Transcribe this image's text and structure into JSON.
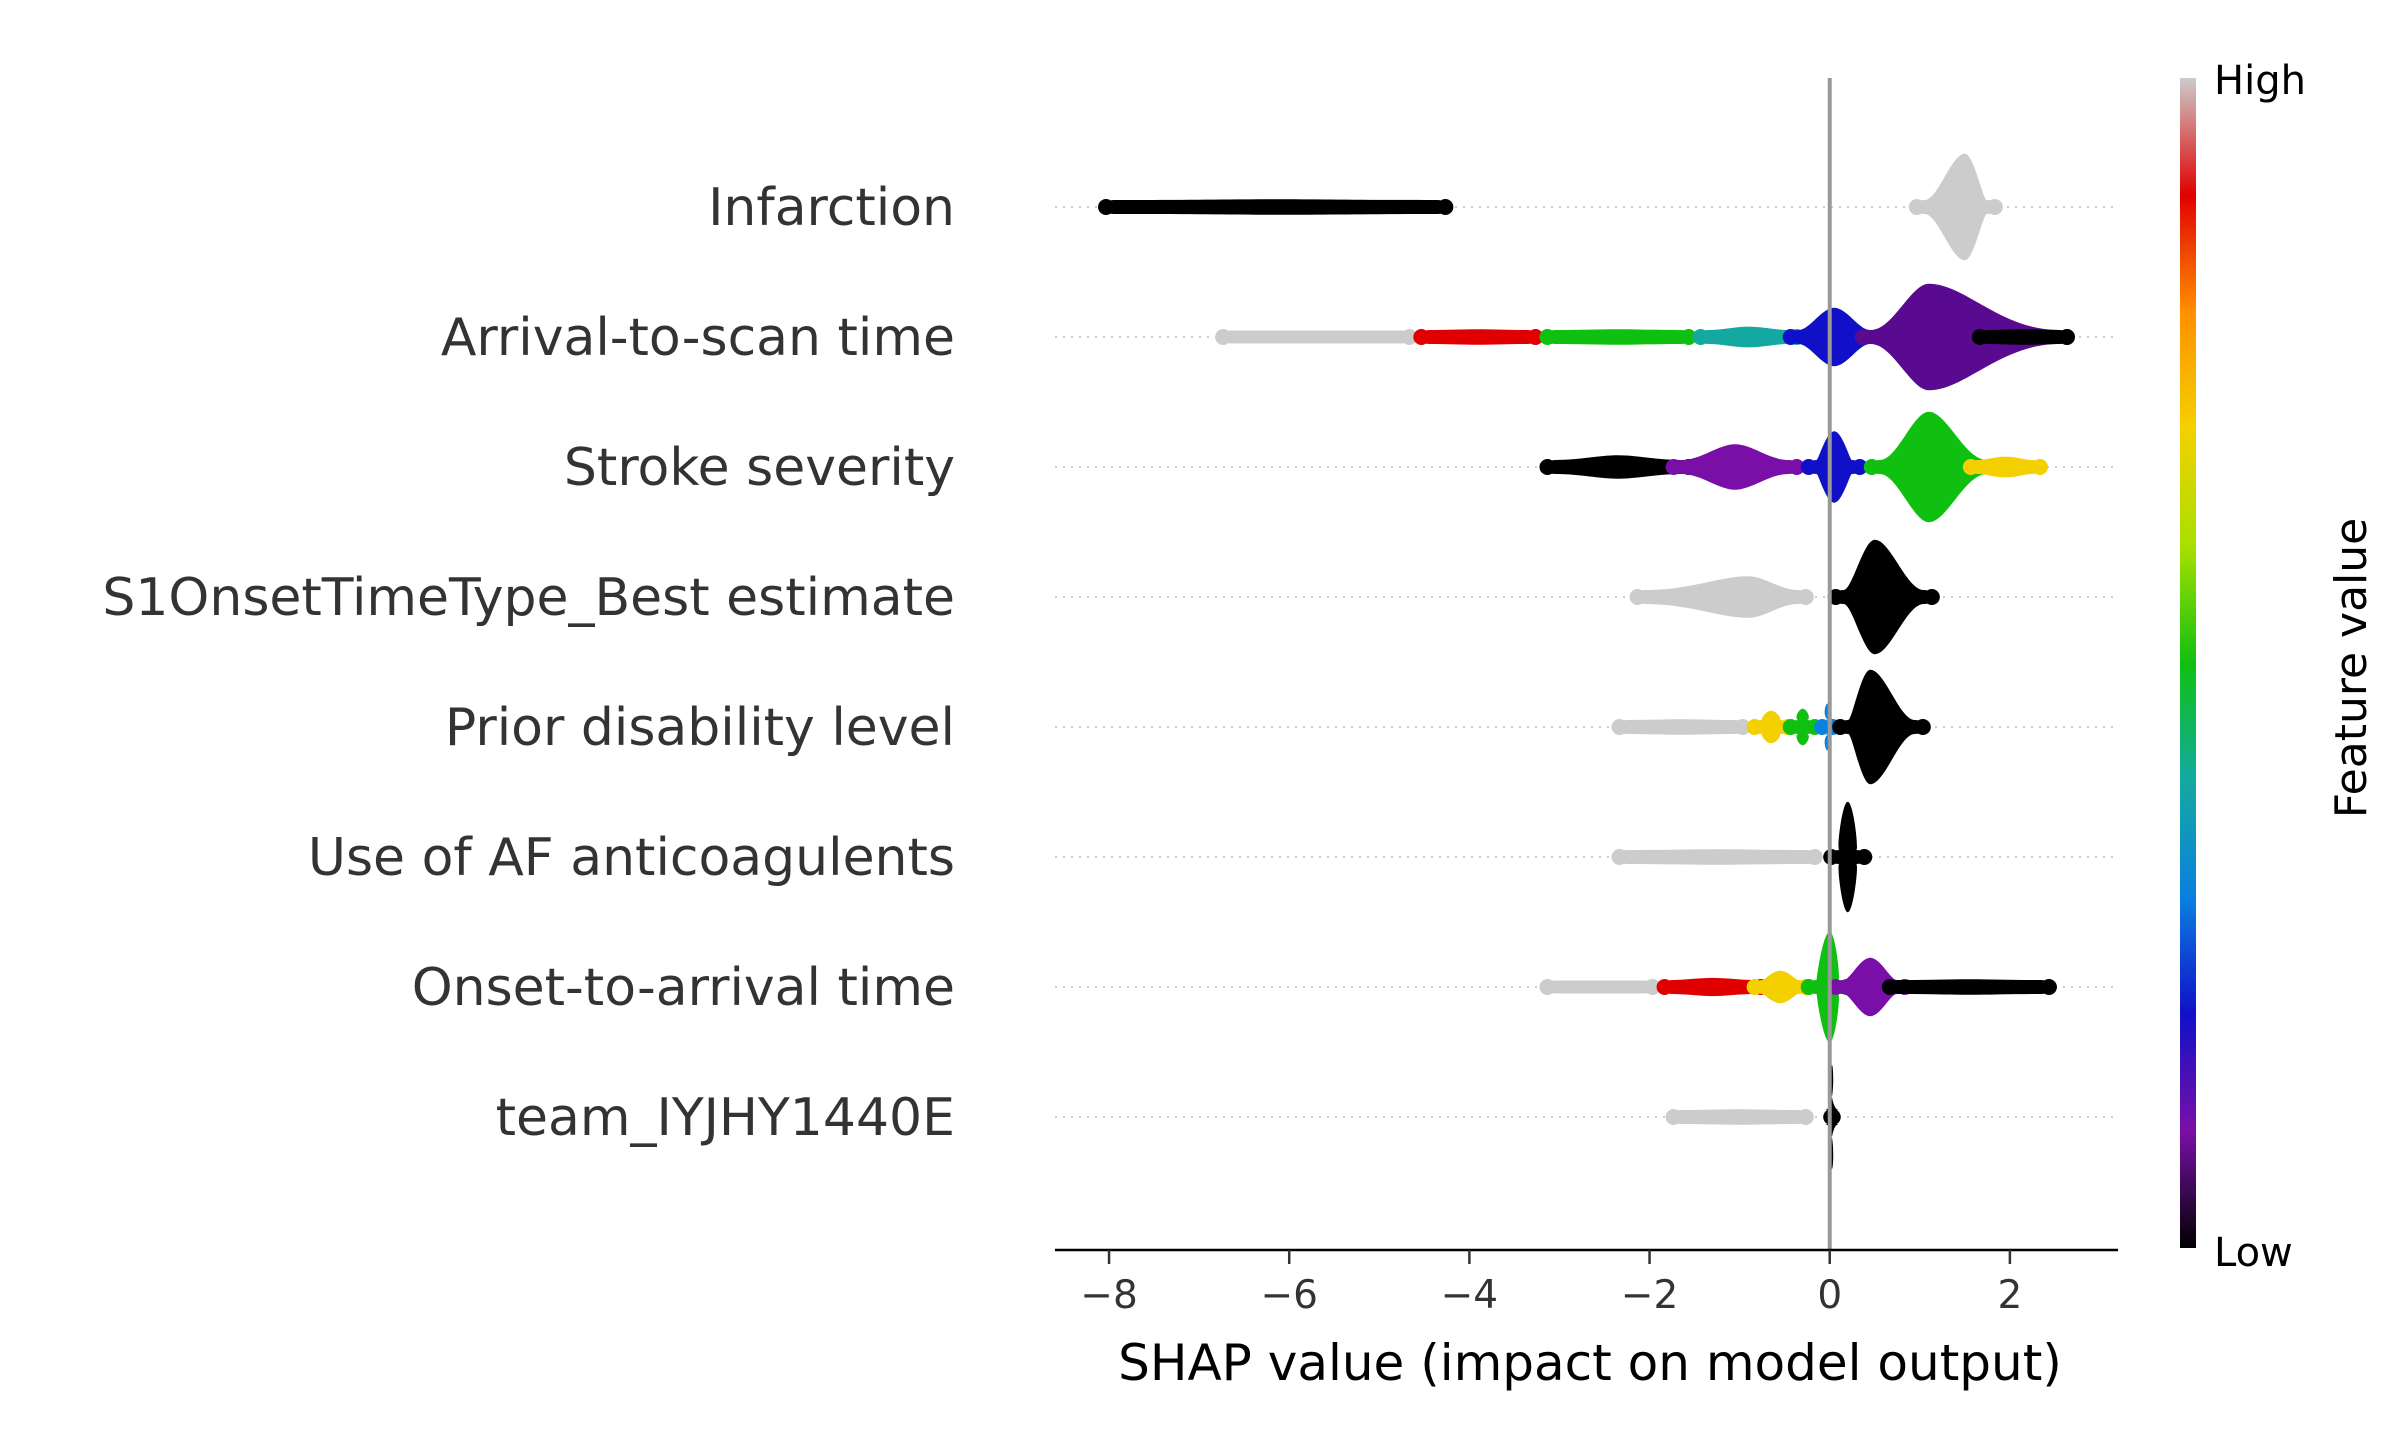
{
  "chart_data": {
    "type": "scatter",
    "subtype": "shap-beeswarm",
    "xlabel": "SHAP value (impact on model output)",
    "xlim": [
      -8.6,
      3.2
    ],
    "xticks": [
      -8,
      -6,
      -4,
      -2,
      0,
      2
    ],
    "xtick_labels": [
      "−8",
      "−6",
      "−4",
      "−2",
      "0",
      "2"
    ],
    "zero_line": 0,
    "colorbar": {
      "title": "Feature value",
      "high_label": "High",
      "low_label": "Low",
      "stops": [
        "#000000",
        "#7a0fa8",
        "#1010c8",
        "#0a80e0",
        "#14a9a0",
        "#10c010",
        "#a8e000",
        "#f4d000",
        "#ff9000",
        "#e00000",
        "#cccccc"
      ]
    },
    "features": [
      {
        "name": "Infarction",
        "segments": [
          {
            "x0": -8.1,
            "x1": -4.2,
            "height": 0.12,
            "color": "#000000"
          },
          {
            "x0": 0.9,
            "x1": 1.9,
            "height": 0.82,
            "color": "#cccccc",
            "peak": 1.5
          }
        ]
      },
      {
        "name": "Arrival-to-scan time",
        "segments": [
          {
            "x0": -6.8,
            "x1": -4.6,
            "height": 0.1,
            "color": "#cccccc"
          },
          {
            "x0": -4.6,
            "x1": -3.2,
            "height": 0.12,
            "color": "#e00000"
          },
          {
            "x0": -3.2,
            "x1": -1.5,
            "height": 0.12,
            "color": "#10c010"
          },
          {
            "x0": -1.5,
            "x1": -0.3,
            "height": 0.16,
            "color": "#14a9a0"
          },
          {
            "x0": -0.5,
            "x1": 0.6,
            "height": 0.45,
            "color": "#1010c8"
          },
          {
            "x0": 0.3,
            "x1": 2.7,
            "height": 0.82,
            "color": "#5a0a90",
            "peak": 1.1
          },
          {
            "x0": 1.6,
            "x1": 2.7,
            "height": 0.12,
            "color": "#000000"
          }
        ]
      },
      {
        "name": "Stroke severity",
        "segments": [
          {
            "x0": -3.2,
            "x1": -1.5,
            "height": 0.18,
            "color": "#000000"
          },
          {
            "x0": -1.8,
            "x1": -0.3,
            "height": 0.35,
            "color": "#7a0fa8"
          },
          {
            "x0": -0.3,
            "x1": 0.4,
            "height": 0.55,
            "color": "#1010c8"
          },
          {
            "x0": 0.4,
            "x1": 1.9,
            "height": 0.85,
            "color": "#10c010",
            "peak": 1.1
          },
          {
            "x0": 1.5,
            "x1": 2.4,
            "height": 0.16,
            "color": "#f4d000"
          }
        ]
      },
      {
        "name": "S1OnsetTimeType_Best estimate",
        "segments": [
          {
            "x0": -2.2,
            "x1": -0.2,
            "height": 0.32,
            "color": "#cccccc",
            "peak": -0.9
          },
          {
            "x0": 0.0,
            "x1": 1.2,
            "height": 0.88,
            "color": "#000000",
            "peak": 0.5
          }
        ]
      },
      {
        "name": "Prior disability level",
        "segments": [
          {
            "x0": -2.4,
            "x1": -0.9,
            "height": 0.12,
            "color": "#cccccc"
          },
          {
            "x0": -0.9,
            "x1": -0.4,
            "height": 0.25,
            "color": "#f4d000"
          },
          {
            "x0": -0.5,
            "x1": -0.1,
            "height": 0.28,
            "color": "#10c010"
          },
          {
            "x0": -0.15,
            "x1": 0.1,
            "height": 0.36,
            "color": "#0a80e0"
          },
          {
            "x0": 0.05,
            "x1": 1.1,
            "height": 0.88,
            "color": "#000000",
            "peak": 0.45
          }
        ]
      },
      {
        "name": "Use of AF anticoagulents",
        "segments": [
          {
            "x0": -2.4,
            "x1": -0.1,
            "height": 0.12,
            "color": "#cccccc"
          },
          {
            "x0": -0.05,
            "x1": 0.45,
            "height": 0.85,
            "color": "#000000",
            "peak": 0.2
          }
        ]
      },
      {
        "name": "Onset-to-arrival time",
        "segments": [
          {
            "x0": -3.2,
            "x1": -1.9,
            "height": 0.1,
            "color": "#cccccc"
          },
          {
            "x0": -1.9,
            "x1": -0.7,
            "height": 0.14,
            "color": "#e00000"
          },
          {
            "x0": -0.9,
            "x1": -0.2,
            "height": 0.25,
            "color": "#f4d000"
          },
          {
            "x0": -0.3,
            "x1": 0.25,
            "height": 0.85,
            "color": "#10c010",
            "peak": 0.0
          },
          {
            "x0": 0.0,
            "x1": 0.9,
            "height": 0.45,
            "color": "#7a0fa8"
          },
          {
            "x0": 0.6,
            "x1": 2.5,
            "height": 0.12,
            "color": "#000000"
          }
        ]
      },
      {
        "name": "team_IYJHY1440E",
        "segments": [
          {
            "x0": -1.8,
            "x1": -0.2,
            "height": 0.12,
            "color": "#cccccc"
          },
          {
            "x0": -0.05,
            "x1": 0.1,
            "height": 0.8,
            "color": "#000000"
          }
        ]
      }
    ]
  }
}
